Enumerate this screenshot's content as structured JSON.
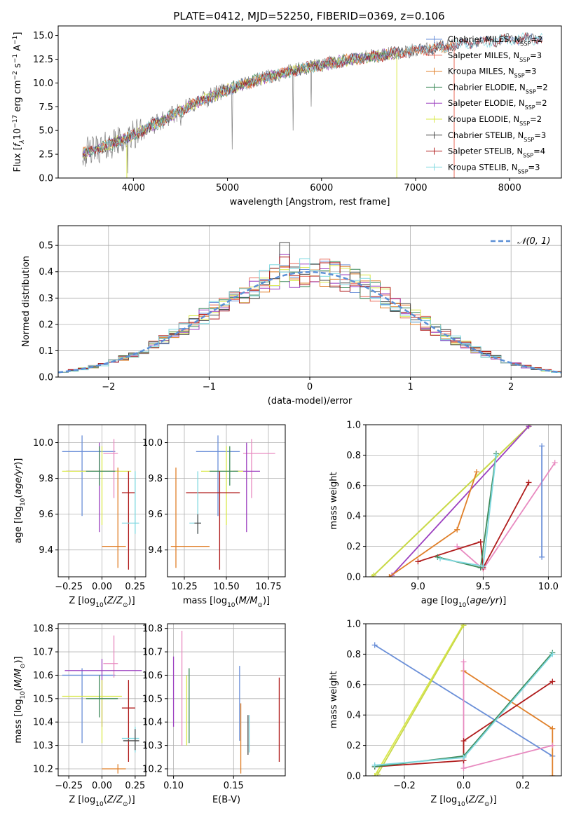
{
  "figure_title": "PLATE=0412, MJD=52250, FIBERID=0369, z=0.106",
  "colors": {
    "chabrier_miles": "#6a8fd8",
    "salpeter_miles": "#e86a5a",
    "kroupa_miles": "#e0802a",
    "chabrier_elodie": "#3d8a5a",
    "salpeter_elodie": "#9b3fbf",
    "kroupa_elodie": "#d9e84a",
    "chabrier_stelib": "#4a4a4a",
    "salpeter_stelib": "#b01c1c",
    "kroupa_stelib": "#7fd8e0",
    "data_spectrum": "#808080",
    "gaussian": "#5b8fd6",
    "grid": "#b0b0b0",
    "pink": "#e88ac0"
  },
  "chart_data": [
    {
      "type": "line",
      "panel": "spectrum",
      "title": "PLATE=0412, MJD=52250, FIBERID=0369, z=0.106",
      "xlabel": "wavelength [Angstrom, rest frame]",
      "ylabel": "Flux [fλ10⁻¹⁷ erg cm⁻² s⁻¹ A⁻¹]",
      "xlim": [
        3200,
        8550
      ],
      "ylim": [
        0,
        16
      ],
      "xticks": [
        4000,
        5000,
        6000,
        7000,
        8000
      ],
      "yticks": [
        0.0,
        2.5,
        5.0,
        7.5,
        10.0,
        12.5,
        15.0
      ],
      "legend_position": "top-right",
      "legend": [
        {
          "name": "Chabrier MILES, N",
          "sub": "SSP",
          "val": "=2",
          "color": "#6a8fd8"
        },
        {
          "name": "Salpeter MILES, N",
          "sub": "SSP",
          "val": "=3",
          "color": "#e86a5a"
        },
        {
          "name": "Kroupa MILES, N",
          "sub": "SSP",
          "val": "=3",
          "color": "#e0802a"
        },
        {
          "name": "Chabrier ELODIE, N",
          "sub": "SSP",
          "val": "=2",
          "color": "#3d8a5a"
        },
        {
          "name": "Salpeter ELODIE, N",
          "sub": "SSP",
          "val": "=2",
          "color": "#9b3fbf"
        },
        {
          "name": "Kroupa ELODIE, N",
          "sub": "SSP",
          "val": "=2",
          "color": "#d9e84a"
        },
        {
          "name": "Chabrier STELIB, N",
          "sub": "SSP",
          "val": "=3",
          "color": "#4a4a4a"
        },
        {
          "name": "Salpeter STELIB, N",
          "sub": "SSP",
          "val": "=4",
          "color": "#b01c1c"
        },
        {
          "name": "Kroupa STELIB, N",
          "sub": "SSP",
          "val": "=3",
          "color": "#7fd8e0"
        }
      ],
      "continuum": {
        "x": [
          3450,
          3700,
          4000,
          4300,
          4600,
          4900,
          5200,
          5500,
          5800,
          6100,
          6400,
          6700,
          7000,
          7300,
          7600,
          7900,
          8300
        ],
        "y": [
          2.6,
          3.3,
          4.5,
          6.0,
          7.6,
          8.9,
          10.0,
          10.8,
          11.5,
          12.1,
          12.6,
          13.0,
          13.4,
          13.8,
          14.2,
          14.5,
          14.7
        ]
      }
    },
    {
      "type": "histogram",
      "panel": "residuals",
      "xlabel": "(data-model)/error",
      "ylabel": "Normed distribution",
      "xlim": [
        -2.5,
        2.5
      ],
      "ylim": [
        0,
        0.575
      ],
      "xticks": [
        -2,
        -1,
        0,
        1,
        2
      ],
      "yticks": [
        0.0,
        0.1,
        0.2,
        0.3,
        0.4,
        0.5
      ],
      "legend": [
        "𝒩(0, 1)"
      ],
      "legend_position": "top-right",
      "bin_width": 0.1,
      "series": [
        {
          "name": "Chabrier MILES",
          "color": "#6a8fd8",
          "seed": 3
        },
        {
          "name": "Salpeter MILES",
          "color": "#e86a5a",
          "seed": 7
        },
        {
          "name": "Kroupa MILES",
          "color": "#e0802a",
          "seed": 11
        },
        {
          "name": "Chabrier ELODIE",
          "color": "#3d8a5a",
          "seed": 13
        },
        {
          "name": "Salpeter ELODIE",
          "color": "#9b3fbf",
          "seed": 17
        },
        {
          "name": "Kroupa ELODIE",
          "color": "#d9e84a",
          "seed": 19
        },
        {
          "name": "Chabrier STELIB",
          "color": "#4a4a4a",
          "seed": 23
        },
        {
          "name": "Salpeter STELIB",
          "color": "#b01c1c",
          "seed": 29
        },
        {
          "name": "Kroupa STELIB",
          "color": "#7fd8e0",
          "seed": 31
        }
      ]
    },
    {
      "type": "scatter",
      "panel": "age_vs_Z",
      "xlabel": "Z [log10(Z/Z⊙)]",
      "ylabel": "age  [log10(age/yr)]",
      "xlim": [
        -0.33,
        0.33
      ],
      "ylim": [
        9.25,
        10.1
      ],
      "xticks": [
        -0.25,
        0.0,
        0.25
      ],
      "yticks": [
        9.4,
        9.6,
        9.8,
        10.0
      ],
      "points": [
        {
          "x": -0.15,
          "y": 9.95,
          "xerr": [
            0.15,
            0.25
          ],
          "yerr": [
            0.36,
            0.09
          ],
          "color": "#6a8fd8"
        },
        {
          "x": 0.09,
          "y": 9.94,
          "xerr": [
            0.08,
            0.03
          ],
          "yerr": [
            0.25,
            0.08
          ],
          "color": "#e88ac0"
        },
        {
          "x": -0.02,
          "y": 9.84,
          "xerr": [
            0.25,
            0.15
          ],
          "yerr": [
            0.34,
            0.16
          ],
          "color": "#9b3fbf"
        },
        {
          "x": 0.0,
          "y": 9.84,
          "xerr": [
            0.3,
            0.22
          ],
          "yerr": [
            0.3,
            0.14
          ],
          "color": "#d9e84a"
        },
        {
          "x": -0.02,
          "y": 9.84,
          "xerr": [
            0.1,
            0.12
          ],
          "yerr": [
            0.08,
            0.14
          ],
          "color": "#3d8a5a"
        },
        {
          "x": 0.2,
          "y": 9.72,
          "xerr": [
            0.05,
            0.05
          ],
          "yerr": [
            0.43,
            0.12
          ],
          "color": "#b01c1c"
        },
        {
          "x": 0.12,
          "y": 9.42,
          "xerr": [
            0.12,
            0.06
          ],
          "yerr": [
            0.12,
            0.44
          ],
          "color": "#e0802a"
        },
        {
          "x": 0.25,
          "y": 9.55,
          "xerr": [
            0.1,
            0.03
          ],
          "yerr": [
            0.06,
            0.29
          ],
          "color": "#7fd8e0"
        }
      ]
    },
    {
      "type": "scatter",
      "panel": "age_vs_mass",
      "xlabel": "mass [log10(M/M⊙)]",
      "ylabel": "",
      "xlim": [
        10.15,
        10.85
      ],
      "ylim": [
        9.25,
        10.1
      ],
      "xticks": [
        10.25,
        10.5,
        10.75
      ],
      "yticks": [
        9.4,
        9.6,
        9.8,
        10.0
      ],
      "points": [
        {
          "x": 10.45,
          "y": 9.95,
          "xerr": [
            0.13,
            0.13
          ],
          "yerr": [
            0.36,
            0.09
          ],
          "color": "#6a8fd8"
        },
        {
          "x": 10.65,
          "y": 9.94,
          "xerr": [
            0.05,
            0.14
          ],
          "yerr": [
            0.25,
            0.08
          ],
          "color": "#e88ac0"
        },
        {
          "x": 10.62,
          "y": 9.84,
          "xerr": [
            0.08,
            0.08
          ],
          "yerr": [
            0.34,
            0.16
          ],
          "color": "#9b3fbf"
        },
        {
          "x": 10.5,
          "y": 9.84,
          "xerr": [
            0.15,
            0.1
          ],
          "yerr": [
            0.3,
            0.14
          ],
          "color": "#d9e84a"
        },
        {
          "x": 10.52,
          "y": 9.84,
          "xerr": [
            0.12,
            0.05
          ],
          "yerr": [
            0.08,
            0.14
          ],
          "color": "#3d8a5a"
        },
        {
          "x": 10.46,
          "y": 9.72,
          "xerr": [
            0.2,
            0.12
          ],
          "yerr": [
            0.43,
            0.12
          ],
          "color": "#b01c1c"
        },
        {
          "x": 10.2,
          "y": 9.42,
          "xerr": [
            0.03,
            0.2
          ],
          "yerr": [
            0.12,
            0.44
          ],
          "color": "#e0802a"
        },
        {
          "x": 10.33,
          "y": 9.55,
          "xerr": [
            0.05,
            0.02
          ],
          "yerr": [
            0.06,
            0.29
          ],
          "color": "#7fd8e0"
        },
        {
          "x": 10.33,
          "y": 9.55,
          "xerr": [
            0.02,
            0.02
          ],
          "yerr": [
            0.06,
            0.05
          ],
          "color": "#4a4a4a"
        }
      ]
    },
    {
      "type": "line",
      "panel": "mass_weight_vs_age",
      "xlabel": "age  [log10(age/yr)]",
      "ylabel": "mass weight",
      "xlim": [
        8.6,
        10.1
      ],
      "ylim": [
        0,
        1.0
      ],
      "xticks": [
        9.0,
        9.5,
        10.0
      ],
      "yticks": [
        0.0,
        0.2,
        0.4,
        0.6,
        0.8,
        1.0
      ],
      "series": [
        {
          "color": "#d9e84a",
          "x": [
            8.65,
            9.85
          ],
          "y": [
            0.0,
            0.99
          ]
        },
        {
          "color": "#c8d84a",
          "x": [
            8.66,
            9.86
          ],
          "y": [
            0.01,
            1.0
          ]
        },
        {
          "color": "#9b3fbf",
          "x": [
            8.8,
            9.85
          ],
          "y": [
            0.01,
            0.99
          ]
        },
        {
          "color": "#e0802a",
          "x": [
            8.78,
            9.3,
            9.45
          ],
          "y": [
            0.0,
            0.31,
            0.69
          ]
        },
        {
          "color": "#e88ac0",
          "x": [
            9.3,
            9.5,
            10.05
          ],
          "y": [
            0.2,
            0.05,
            0.75
          ]
        },
        {
          "color": "#b01c1c",
          "x": [
            9.0,
            9.48,
            9.5,
            9.85
          ],
          "y": [
            0.1,
            0.23,
            0.06,
            0.62
          ]
        },
        {
          "color": "#3d8a5a",
          "x": [
            9.15,
            9.48,
            9.6
          ],
          "y": [
            0.13,
            0.06,
            0.81
          ]
        },
        {
          "color": "#7fd8e0",
          "x": [
            9.17,
            9.5,
            9.6
          ],
          "y": [
            0.12,
            0.07,
            0.8
          ]
        },
        {
          "color": "#6a8fd8",
          "x": [
            9.95,
            9.95
          ],
          "y": [
            0.13,
            0.86
          ]
        }
      ]
    },
    {
      "type": "scatter",
      "panel": "mass_vs_Z",
      "xlabel": "Z [log10(Z/Z⊙)]",
      "ylabel": "mass [log10(M/M⊙)]",
      "xlim": [
        -0.33,
        0.33
      ],
      "ylim": [
        10.17,
        10.82
      ],
      "xticks": [
        -0.25,
        0.0,
        0.25
      ],
      "yticks": [
        10.2,
        10.3,
        10.4,
        10.5,
        10.6,
        10.7,
        10.8
      ],
      "points": [
        {
          "x": -0.15,
          "y": 10.6,
          "xerr": [
            0.15,
            0.25
          ],
          "yerr": [
            0.29,
            0.03
          ],
          "color": "#6a8fd8"
        },
        {
          "x": 0.09,
          "y": 10.65,
          "xerr": [
            0.08,
            0.03
          ],
          "yerr": [
            0.06,
            0.12
          ],
          "color": "#e88ac0"
        },
        {
          "x": 0.0,
          "y": 10.62,
          "xerr": [
            0.28,
            0.3
          ],
          "yerr": [
            0.24,
            0.05
          ],
          "color": "#9b3fbf"
        },
        {
          "x": 0.0,
          "y": 10.51,
          "xerr": [
            0.3,
            0.15
          ],
          "yerr": [
            0.2,
            0.07
          ],
          "color": "#d9e84a"
        },
        {
          "x": -0.02,
          "y": 10.5,
          "xerr": [
            0.1,
            0.14
          ],
          "yerr": [
            0.08,
            0.1
          ],
          "color": "#3d8a5a"
        },
        {
          "x": 0.2,
          "y": 10.46,
          "xerr": [
            0.05,
            0.05
          ],
          "yerr": [
            0.23,
            0.12
          ],
          "color": "#b01c1c"
        },
        {
          "x": 0.12,
          "y": 10.2,
          "xerr": [
            0.12,
            0.06
          ],
          "yerr": [
            0.02,
            0.02
          ],
          "color": "#e0802a"
        },
        {
          "x": 0.25,
          "y": 10.33,
          "xerr": [
            0.1,
            0.03
          ],
          "yerr": [
            0.06,
            0.05
          ],
          "color": "#7fd8e0"
        },
        {
          "x": 0.25,
          "y": 10.32,
          "xerr": [
            0.09,
            0.03
          ],
          "yerr": [
            0.04,
            0.05
          ],
          "color": "#4a4a4a"
        }
      ]
    },
    {
      "type": "scatter",
      "panel": "mass_vs_EBV",
      "xlabel": "E(B-V)",
      "ylabel": "",
      "xlim": [
        0.095,
        0.193
      ],
      "ylim": [
        10.17,
        10.82
      ],
      "xticks": [
        0.1,
        0.15
      ],
      "yticks": [
        10.2,
        10.3,
        10.4,
        10.5,
        10.6,
        10.7,
        10.8
      ],
      "points": [
        {
          "x": 0.1,
          "y": 10.52,
          "yerr": [
            0.14,
            0.16
          ],
          "color": "#9b3fbf"
        },
        {
          "x": 0.107,
          "y": 10.6,
          "yerr": [
            0.3,
            0.19
          ],
          "color": "#e88ac0"
        },
        {
          "x": 0.111,
          "y": 10.45,
          "yerr": [
            0.15,
            0.15
          ],
          "color": "#d9e84a"
        },
        {
          "x": 0.113,
          "y": 10.47,
          "yerr": [
            0.16,
            0.16
          ],
          "color": "#3d8a5a"
        },
        {
          "x": 0.155,
          "y": 10.47,
          "yerr": [
            0.15,
            0.17
          ],
          "color": "#6a8fd8"
        },
        {
          "x": 0.156,
          "y": 10.33,
          "yerr": [
            0.15,
            0.15
          ],
          "color": "#e0802a"
        },
        {
          "x": 0.162,
          "y": 10.35,
          "yerr": [
            0.09,
            0.08
          ],
          "color": "#4a4a4a"
        },
        {
          "x": 0.163,
          "y": 10.35,
          "yerr": [
            0.08,
            0.08
          ],
          "color": "#7fd8e0"
        },
        {
          "x": 0.188,
          "y": 10.41,
          "yerr": [
            0.18,
            0.18
          ],
          "color": "#b01c1c"
        }
      ]
    },
    {
      "type": "line",
      "panel": "mass_weight_vs_Z",
      "xlabel": "Z [log10(Z/Z⊙)]",
      "ylabel": "mass weight",
      "xlim": [
        -0.33,
        0.33
      ],
      "ylim": [
        0,
        1.0
      ],
      "xticks": [
        -0.2,
        0.0,
        0.2
      ],
      "yticks": [
        0.0,
        0.2,
        0.4,
        0.6,
        0.8,
        1.0
      ],
      "series": [
        {
          "color": "#6a8fd8",
          "x": [
            -0.3,
            0.3
          ],
          "y": [
            0.86,
            0.13
          ]
        },
        {
          "color": "#d9e84a",
          "x": [
            -0.3,
            0.0
          ],
          "y": [
            0.0,
            1.0
          ]
        },
        {
          "color": "#c8d84a",
          "x": [
            -0.29,
            0.0
          ],
          "y": [
            0.01,
            0.99
          ]
        },
        {
          "color": "#e0802a",
          "x": [
            0.0,
            0.3,
            0.3
          ],
          "y": [
            0.69,
            0.31,
            0.0
          ]
        },
        {
          "color": "#e88ac0",
          "x": [
            0.0,
            0.0,
            0.3
          ],
          "y": [
            0.75,
            0.05,
            0.2
          ]
        },
        {
          "color": "#b01c1c",
          "x": [
            -0.3,
            0.0,
            0.0,
            0.3
          ],
          "y": [
            0.06,
            0.1,
            0.23,
            0.62
          ]
        },
        {
          "color": "#3d8a5a",
          "x": [
            -0.3,
            0.0,
            0.3
          ],
          "y": [
            0.06,
            0.13,
            0.81
          ]
        },
        {
          "color": "#7fd8e0",
          "x": [
            -0.3,
            0.0,
            0.3
          ],
          "y": [
            0.07,
            0.12,
            0.8
          ]
        }
      ]
    }
  ]
}
